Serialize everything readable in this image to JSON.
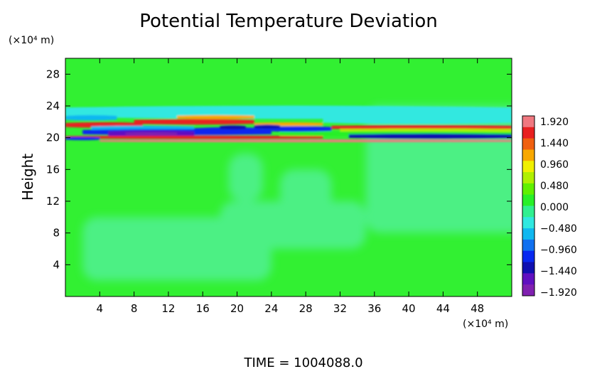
{
  "chart_data": {
    "type": "heatmap",
    "title": "Potential Temperature Deviation",
    "ylabel": "Height",
    "xunit": "(×10⁴ m)",
    "yunit": "(×10⁴ m)",
    "xlim": [
      0,
      52
    ],
    "ylim": [
      0,
      30
    ],
    "x_ticks": [
      "4",
      "8",
      "12",
      "16",
      "20",
      "24",
      "28",
      "32",
      "36",
      "40",
      "44",
      "48"
    ],
    "y_ticks": [
      "4",
      "8",
      "12",
      "16",
      "20",
      "24",
      "28"
    ],
    "x_tick_values": [
      4,
      8,
      12,
      16,
      20,
      24,
      28,
      32,
      36,
      40,
      44,
      48
    ],
    "y_tick_values": [
      4,
      8,
      12,
      16,
      20,
      24,
      28
    ],
    "colorbar": {
      "labels": [
        "1.920",
        "1.440",
        "0.960",
        "0.480",
        "0.000",
        "−0.480",
        "−0.960",
        "−1.440",
        "−1.920"
      ],
      "values": [
        1.92,
        1.44,
        0.96,
        0.48,
        0.0,
        -0.48,
        -0.96,
        -1.44,
        -1.92
      ],
      "colors": [
        "#f07880",
        "#e82020",
        "#f06010",
        "#f8a800",
        "#f0f000",
        "#b0f000",
        "#60f000",
        "#28f028",
        "#30f090",
        "#30e8e0",
        "#10b8f0",
        "#1070f0",
        "#0828f0",
        "#1010b0",
        "#6010c0",
        "#8020b0"
      ]
    },
    "field_colors": {
      "background": "#32f032",
      "light_cyan": "#55f0a0"
    },
    "time_label": "TIME = 1004088.0"
  }
}
